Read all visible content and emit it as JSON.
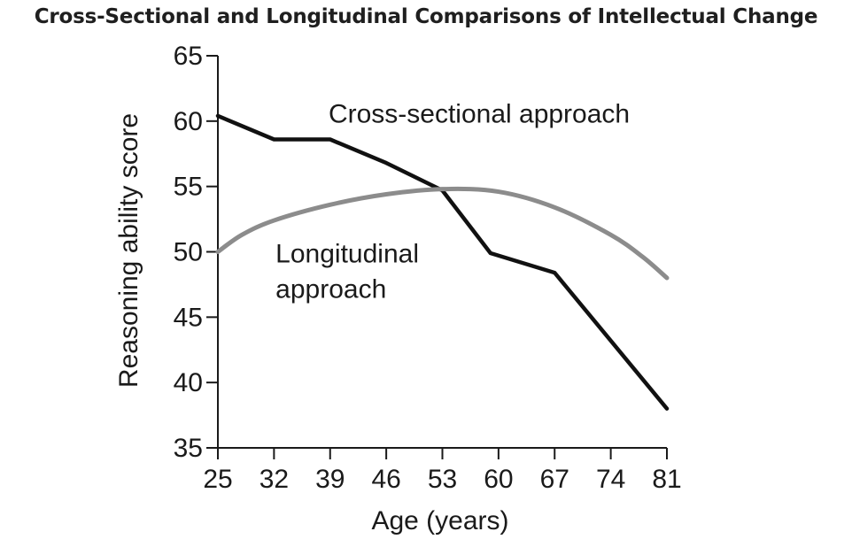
{
  "chart_data": {
    "type": "line",
    "title": "Cross-Sectional and Longitudinal Comparisons of Intellectual Change",
    "xlabel": "Age (years)",
    "ylabel": "Reasoning ability score",
    "x_ticks": [
      25,
      32,
      39,
      46,
      53,
      60,
      67,
      74,
      81
    ],
    "y_ticks": [
      35,
      40,
      45,
      50,
      55,
      60,
      65
    ],
    "xlim": [
      25,
      81
    ],
    "ylim": [
      35,
      65
    ],
    "grid": false,
    "series": [
      {
        "name": "Cross-sectional approach",
        "color": "#111111",
        "x": [
          25,
          32,
          39,
          46,
          53,
          59,
          67,
          81
        ],
        "y": [
          60.4,
          58.6,
          58.6,
          56.8,
          54.7,
          49.9,
          48.4,
          38.0
        ]
      },
      {
        "name": "Longitudinal approach",
        "color": "#8c8c8c",
        "x": [
          25,
          28,
          32,
          39,
          46,
          53,
          60,
          67,
          74,
          78,
          81
        ],
        "y": [
          50.0,
          51.3,
          52.4,
          53.6,
          54.4,
          54.8,
          54.6,
          53.4,
          51.3,
          49.6,
          48.0
        ]
      }
    ],
    "annotations": [
      {
        "series": "Cross-sectional approach",
        "lines": [
          "Cross-sectional approach"
        ],
        "x": 38.8,
        "y": 59.9
      },
      {
        "series": "Longitudinal approach",
        "lines": [
          "Longitudinal",
          "approach"
        ],
        "x": 32.2,
        "y": 49.2
      }
    ]
  }
}
